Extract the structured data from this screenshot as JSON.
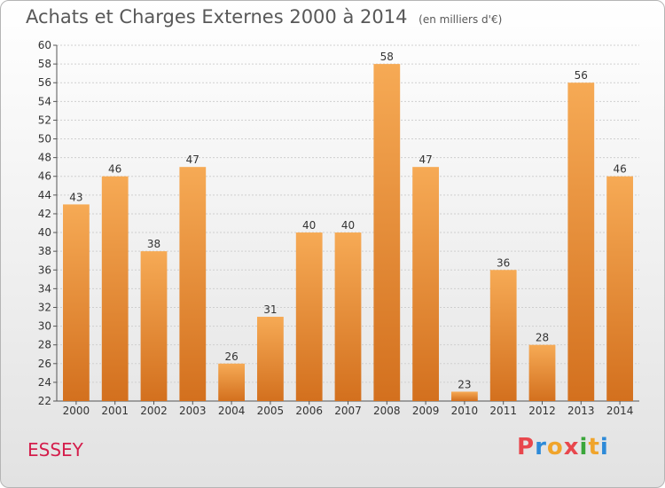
{
  "header": {
    "title": "Achats et Charges Externes 2000 à 2014",
    "subtitle": "(en milliers d'€)"
  },
  "footer": {
    "place": "ESSEY",
    "logo": "Proxiti",
    "logo_colors": [
      "#e8474d",
      "#2d8ad8",
      "#f0a42b",
      "#e8474d",
      "#3aa63a",
      "#f0a42b",
      "#2d8ad8"
    ]
  },
  "colors": {
    "bar_top": "#f6aa55",
    "bar_bottom": "#d3701e",
    "place_text": "#d41d4b",
    "grid": "#cfcfcf"
  },
  "chart_data": {
    "type": "bar",
    "title": "Achats et Charges Externes 2000 à 2014",
    "subtitle": "(en milliers d'€)",
    "xlabel": "",
    "ylabel": "",
    "categories": [
      "2000",
      "2001",
      "2002",
      "2003",
      "2004",
      "2005",
      "2006",
      "2007",
      "2008",
      "2009",
      "2010",
      "2011",
      "2012",
      "2013",
      "2014"
    ],
    "values": [
      43,
      46,
      38,
      47,
      26,
      31,
      40,
      40,
      58,
      47,
      23,
      36,
      28,
      56,
      46
    ],
    "ylim": [
      22,
      60
    ],
    "yticks": [
      22,
      24,
      26,
      28,
      30,
      32,
      34,
      36,
      38,
      40,
      42,
      44,
      46,
      48,
      50,
      52,
      54,
      56,
      58,
      60
    ],
    "grid": true,
    "data_labels": true
  }
}
